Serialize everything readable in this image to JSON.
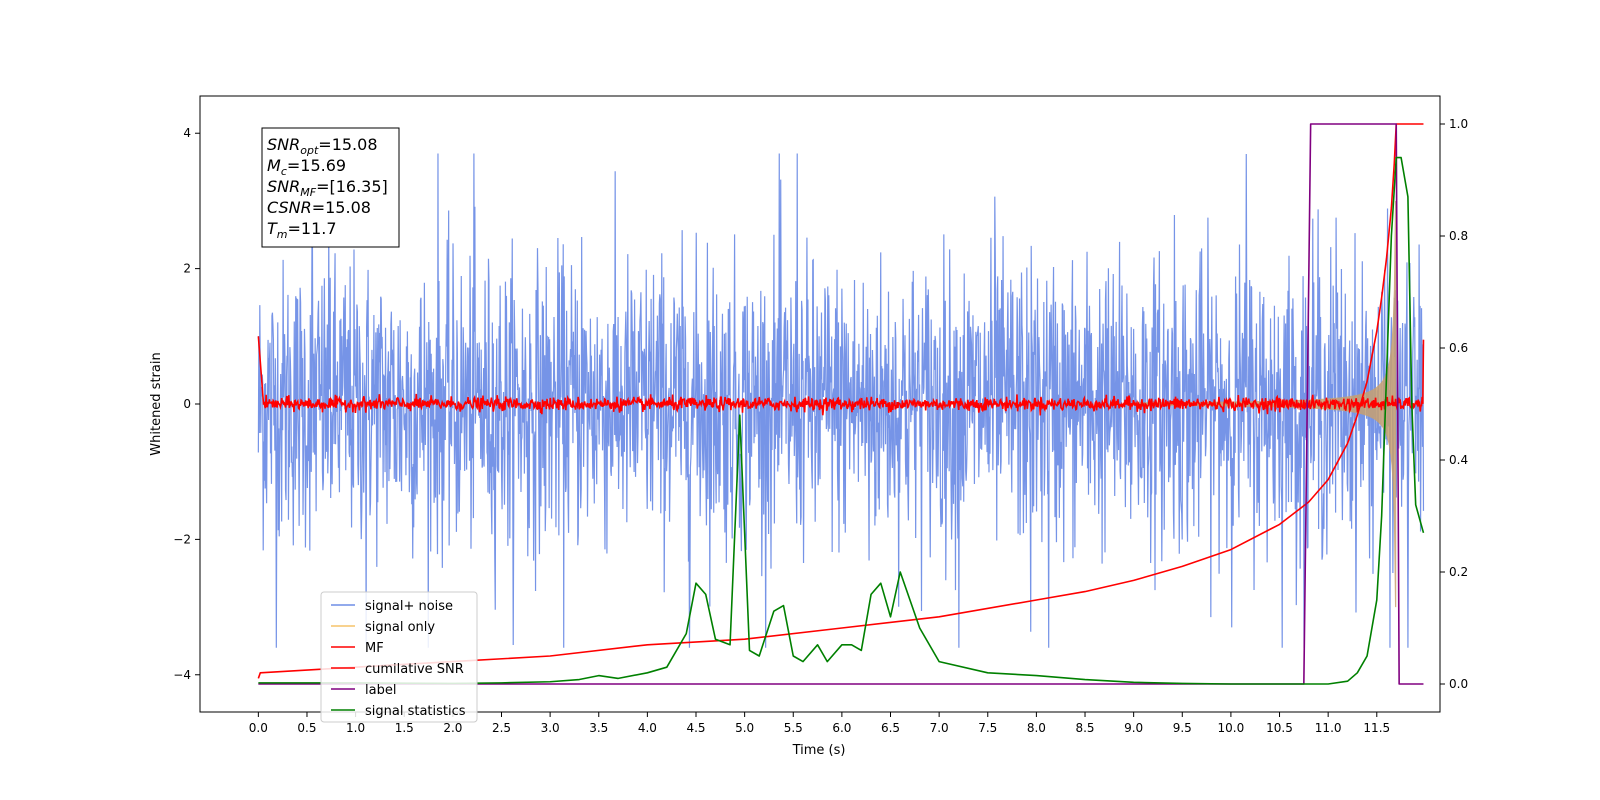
{
  "chart_data": {
    "type": "line",
    "xlabel": "Time (s)",
    "ylabel": "Whitened strain",
    "xlim": [
      -0.6,
      12.15
    ],
    "ylim": [
      -4.55,
      4.55
    ],
    "y2lim": [
      -0.05,
      1.05
    ],
    "x_ticks": [
      0.0,
      0.5,
      1.0,
      1.5,
      2.0,
      2.5,
      3.0,
      3.5,
      4.0,
      4.5,
      5.0,
      5.5,
      6.0,
      6.5,
      7.0,
      7.5,
      8.0,
      8.5,
      9.0,
      9.5,
      10.0,
      10.5,
      11.0,
      11.5
    ],
    "x_tick_labels": [
      "0.0",
      "0.5",
      "1.0",
      "1.5",
      "2.0",
      "2.5",
      "3.0",
      "3.5",
      "4.0",
      "4.5",
      "5.0",
      "5.5",
      "6.0",
      "6.5",
      "7.0",
      "7.5",
      "8.0",
      "8.5",
      "9.0",
      "9.5",
      "10.0",
      "10.5",
      "11.0",
      "11.5"
    ],
    "y_ticks": [
      -4,
      -2,
      0,
      2,
      4
    ],
    "y_tick_labels": [
      "−4",
      "−2",
      "0",
      "2",
      "4"
    ],
    "y2_ticks": [
      0.0,
      0.2,
      0.4,
      0.6,
      0.8,
      1.0
    ],
    "y2_tick_labels": [
      "0.0",
      "0.2",
      "0.4",
      "0.6",
      "0.8",
      "1.0"
    ],
    "grid": false,
    "legend_position": "lower-left",
    "legend": [
      {
        "label": "signal+ noise",
        "color": "#6f8ee6"
      },
      {
        "label": "signal only",
        "color": "#f5c46a"
      },
      {
        "label": "MF",
        "color": "#ff0000"
      },
      {
        "label": "cumilative SNR",
        "color": "#ff0000"
      },
      {
        "label": "label",
        "color": "#800080"
      },
      {
        "label": "signal statistics",
        "color": "#008000"
      }
    ],
    "annotation": [
      {
        "name": "SNR",
        "sub": "opt",
        "value": "=15.08"
      },
      {
        "name": "M",
        "sub": "c",
        "value": "=15.69"
      },
      {
        "name": "SNR",
        "sub": "MF",
        "value": "=[16.35]"
      },
      {
        "name": "CSNR",
        "sub": "",
        "value": "=15.08"
      },
      {
        "name": "T",
        "sub": "m",
        "value": "=11.7"
      }
    ],
    "series": [
      {
        "name": "signal+ noise",
        "axis": "left",
        "style": "noise",
        "x_range": [
          0.0,
          11.98
        ],
        "sigma": 1.0,
        "peak_range": [
          -3.6,
          3.7
        ],
        "color": "#6f8ee6"
      },
      {
        "name": "signal only",
        "axis": "left",
        "style": "chirp",
        "x_range": [
          0.0,
          11.7
        ],
        "max_amplitude": 3.0,
        "color": "#c8a070"
      },
      {
        "name": "MF",
        "axis": "left",
        "style": "noise",
        "x_range": [
          0.0,
          11.98
        ],
        "sigma": 0.05,
        "start_value": 1.0,
        "end_value": 0.95,
        "color": "#ff0000"
      },
      {
        "name": "cumilative SNR",
        "axis": "right",
        "x": [
          0.0,
          0.02,
          1.0,
          2.0,
          3.0,
          4.0,
          5.0,
          6.0,
          7.0,
          8.0,
          8.5,
          9.0,
          9.5,
          10.0,
          10.5,
          10.8,
          11.0,
          11.2,
          11.3,
          11.4,
          11.5,
          11.55,
          11.6,
          11.65,
          11.68,
          11.7,
          11.98
        ],
        "y": [
          0.01,
          0.02,
          0.03,
          0.04,
          0.05,
          0.07,
          0.08,
          0.1,
          0.12,
          0.15,
          0.165,
          0.185,
          0.21,
          0.24,
          0.285,
          0.325,
          0.365,
          0.43,
          0.48,
          0.54,
          0.63,
          0.69,
          0.76,
          0.85,
          0.93,
          1.0,
          1.0
        ],
        "color": "#ff0000"
      },
      {
        "name": "label",
        "axis": "right",
        "x": [
          0.0,
          10.75,
          10.82,
          11.7,
          11.73,
          11.98
        ],
        "y": [
          0.0,
          0.0,
          1.0,
          1.0,
          0.0,
          0.0
        ],
        "color": "#800080"
      },
      {
        "name": "signal statistics",
        "axis": "right",
        "x": [
          0.0,
          1.0,
          2.0,
          2.5,
          3.0,
          3.3,
          3.5,
          3.7,
          4.0,
          4.2,
          4.4,
          4.5,
          4.6,
          4.7,
          4.85,
          4.95,
          5.05,
          5.15,
          5.3,
          5.4,
          5.5,
          5.6,
          5.75,
          5.85,
          6.0,
          6.1,
          6.2,
          6.3,
          6.4,
          6.5,
          6.6,
          6.8,
          7.0,
          7.5,
          8.0,
          8.5,
          9.0,
          9.5,
          10.0,
          10.5,
          11.0,
          11.2,
          11.3,
          11.4,
          11.5,
          11.55,
          11.6,
          11.65,
          11.7,
          11.75,
          11.82,
          11.86,
          11.9,
          11.98
        ],
        "y": [
          0.002,
          0.002,
          0.001,
          0.002,
          0.004,
          0.008,
          0.015,
          0.01,
          0.02,
          0.03,
          0.09,
          0.18,
          0.16,
          0.08,
          0.07,
          0.48,
          0.06,
          0.05,
          0.13,
          0.14,
          0.05,
          0.04,
          0.07,
          0.04,
          0.07,
          0.07,
          0.06,
          0.16,
          0.18,
          0.12,
          0.2,
          0.1,
          0.04,
          0.02,
          0.015,
          0.008,
          0.003,
          0.001,
          0.0,
          0.0,
          0.0,
          0.005,
          0.02,
          0.05,
          0.15,
          0.3,
          0.55,
          0.8,
          0.94,
          0.94,
          0.87,
          0.5,
          0.32,
          0.27
        ],
        "color": "#008000"
      }
    ]
  }
}
